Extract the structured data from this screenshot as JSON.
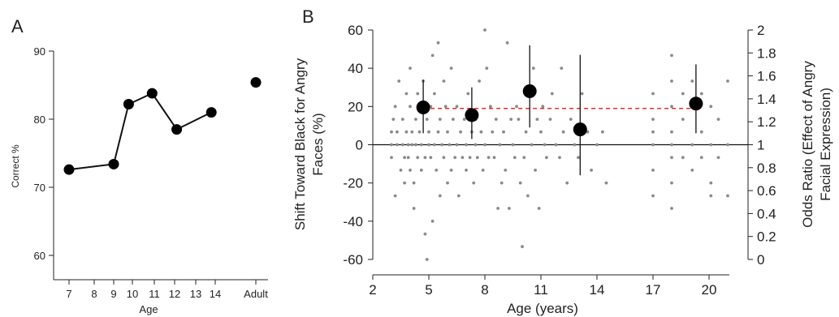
{
  "chart_data": [
    {
      "type": "line",
      "panel_label": "A",
      "xlabel": "Age",
      "ylabel": "Correct %",
      "ylim": [
        57,
        93
      ],
      "yticks": [
        60,
        70,
        80,
        90
      ],
      "x_categories": [
        "7",
        "8",
        "9",
        "10",
        "11",
        "12",
        "13",
        "14",
        "Adult"
      ],
      "points": [
        {
          "x": 7.0,
          "y": 72.6
        },
        {
          "x": 9.0,
          "y": 73.4
        },
        {
          "x": 9.8,
          "y": 82.2
        },
        {
          "x": 10.9,
          "y": 83.8
        },
        {
          "x": 12.1,
          "y": 78.5
        },
        {
          "x": 13.8,
          "y": 81.0
        }
      ],
      "adult_point": {
        "x": "Adult",
        "y": 85.4
      },
      "grid": false
    },
    {
      "type": "scatter",
      "panel_label": "B",
      "xlabel": "Age (years)",
      "ylabel": "Shift Toward Black for Angry Faces (%)",
      "ylabel_right": "Odds Ratio (Effect of Angry Facial Expression)",
      "xlim": [
        2,
        21.5
      ],
      "ylim": [
        -60,
        60
      ],
      "xticks": [
        2,
        5,
        8,
        11,
        14,
        17,
        20
      ],
      "yticks": [
        -60,
        -40,
        -20,
        0,
        20,
        40,
        60
      ],
      "yticks_right": [
        "0",
        "0.2",
        "0.4",
        "0.6",
        "0.8",
        "1",
        "1.2",
        "1.4",
        "1.6",
        "1.8",
        "2"
      ],
      "grid": false,
      "means": [
        {
          "x": 4.7,
          "y": 19.5,
          "low": 6,
          "high": 34
        },
        {
          "x": 7.3,
          "y": 15.5,
          "low": 3,
          "high": 30
        },
        {
          "x": 10.4,
          "y": 28,
          "low": 9,
          "high": 52
        },
        {
          "x": 13.1,
          "y": 8,
          "low": -16,
          "high": 47
        },
        {
          "x": 19.3,
          "y": 21.5,
          "low": 6,
          "high": 42
        }
      ],
      "reference_line": {
        "x": [
          4.7,
          19.3
        ],
        "y": [
          19,
          19
        ],
        "color": "#e03030"
      },
      "individual_points": [
        [
          3.0,
          6.7
        ],
        [
          3.0,
          0
        ],
        [
          3.0,
          -6.7
        ],
        [
          3.1,
          13.3
        ],
        [
          3.2,
          -26.7
        ],
        [
          3.2,
          20
        ],
        [
          3.3,
          0
        ],
        [
          3.3,
          6.7
        ],
        [
          3.4,
          33.3
        ],
        [
          3.5,
          -13.3
        ],
        [
          3.6,
          0
        ],
        [
          3.6,
          13.3
        ],
        [
          3.7,
          -6.7
        ],
        [
          3.7,
          -20
        ],
        [
          3.8,
          6.7
        ],
        [
          3.8,
          26.7
        ],
        [
          3.9,
          0
        ],
        [
          3.9,
          -6.7
        ],
        [
          4.0,
          40
        ],
        [
          4.0,
          20
        ],
        [
          4.0,
          -13.3
        ],
        [
          4.1,
          6.7
        ],
        [
          4.1,
          0
        ],
        [
          4.2,
          -20
        ],
        [
          4.2,
          -33.3
        ],
        [
          4.3,
          13.3
        ],
        [
          4.3,
          0
        ],
        [
          4.4,
          26.7
        ],
        [
          4.4,
          -6.7
        ],
        [
          4.5,
          6.7
        ],
        [
          4.5,
          20
        ],
        [
          4.6,
          0
        ],
        [
          4.6,
          -13.3
        ],
        [
          4.7,
          33.3
        ],
        [
          4.8,
          -6.7
        ],
        [
          4.8,
          -46.7
        ],
        [
          4.9,
          -60
        ],
        [
          4.9,
          13.3
        ],
        [
          5.0,
          0
        ],
        [
          5.0,
          6.7
        ],
        [
          5.1,
          -6.7
        ],
        [
          5.1,
          20
        ],
        [
          5.2,
          46.7
        ],
        [
          5.2,
          -40
        ],
        [
          5.3,
          0
        ],
        [
          5.3,
          26.7
        ],
        [
          5.4,
          -13.3
        ],
        [
          5.5,
          6.7
        ],
        [
          5.5,
          53.3
        ],
        [
          5.6,
          -26.7
        ],
        [
          5.6,
          13.3
        ],
        [
          5.7,
          0
        ],
        [
          5.8,
          -6.7
        ],
        [
          5.8,
          33.3
        ],
        [
          5.9,
          20
        ],
        [
          6.0,
          -20
        ],
        [
          6.0,
          6.7
        ],
        [
          6.1,
          0
        ],
        [
          6.2,
          -13.3
        ],
        [
          6.2,
          40
        ],
        [
          6.3,
          13.3
        ],
        [
          6.4,
          -6.7
        ],
        [
          6.5,
          0
        ],
        [
          6.5,
          20
        ],
        [
          6.6,
          -26.7
        ],
        [
          6.7,
          6.7
        ],
        [
          6.8,
          -6.7
        ],
        [
          6.9,
          13.3
        ],
        [
          7.0,
          0
        ],
        [
          7.0,
          -13.3
        ],
        [
          7.1,
          26.7
        ],
        [
          7.2,
          -6.7
        ],
        [
          7.3,
          6.7
        ],
        [
          7.4,
          -20
        ],
        [
          7.5,
          0
        ],
        [
          7.5,
          13.3
        ],
        [
          7.6,
          -6.7
        ],
        [
          7.7,
          33.3
        ],
        [
          7.8,
          6.7
        ],
        [
          7.9,
          -13.3
        ],
        [
          8.0,
          60
        ],
        [
          8.0,
          0
        ],
        [
          8.1,
          40
        ],
        [
          8.2,
          -6.7
        ],
        [
          8.3,
          20
        ],
        [
          8.4,
          6.7
        ],
        [
          8.5,
          -6.7
        ],
        [
          8.6,
          13.3
        ],
        [
          8.7,
          -33.3
        ],
        [
          8.8,
          0
        ],
        [
          8.9,
          -20
        ],
        [
          9.0,
          6.7
        ],
        [
          9.1,
          -13.3
        ],
        [
          9.2,
          53.3
        ],
        [
          9.3,
          -33.3
        ],
        [
          9.4,
          13.3
        ],
        [
          9.5,
          0
        ],
        [
          9.6,
          -6.7
        ],
        [
          9.7,
          20
        ],
        [
          9.8,
          13.3
        ],
        [
          9.9,
          -20
        ],
        [
          10.0,
          -53.3
        ],
        [
          10.1,
          -6.7
        ],
        [
          10.2,
          6.7
        ],
        [
          10.3,
          -26.7
        ],
        [
          10.5,
          0
        ],
        [
          10.6,
          40
        ],
        [
          10.7,
          -13.3
        ],
        [
          10.8,
          13.3
        ],
        [
          10.9,
          -33.3
        ],
        [
          11.0,
          6.7
        ],
        [
          11.1,
          20
        ],
        [
          11.2,
          0
        ],
        [
          11.3,
          -6.7
        ],
        [
          11.5,
          13.3
        ],
        [
          11.6,
          26.7
        ],
        [
          11.8,
          0
        ],
        [
          12.0,
          -6.7
        ],
        [
          12.1,
          40
        ],
        [
          12.2,
          6.7
        ],
        [
          12.4,
          -20
        ],
        [
          12.6,
          13.3
        ],
        [
          12.8,
          0
        ],
        [
          13.0,
          -6.7
        ],
        [
          13.2,
          26.7
        ],
        [
          13.5,
          6.7
        ],
        [
          13.7,
          -13.3
        ],
        [
          14.0,
          0
        ],
        [
          14.3,
          6.7
        ],
        [
          14.5,
          -20
        ],
        [
          17.0,
          26.7
        ],
        [
          17.0,
          13.3
        ],
        [
          17.0,
          6.7
        ],
        [
          17.0,
          0
        ],
        [
          17.0,
          -13.3
        ],
        [
          17.0,
          -26.7
        ],
        [
          18.0,
          46.7
        ],
        [
          18.0,
          33.3
        ],
        [
          18.0,
          20
        ],
        [
          18.0,
          6.7
        ],
        [
          18.0,
          0
        ],
        [
          18.0,
          -6.7
        ],
        [
          18.0,
          -20
        ],
        [
          18.0,
          -33.3
        ],
        [
          18.6,
          26.7
        ],
        [
          18.6,
          13.3
        ],
        [
          18.6,
          -6.7
        ],
        [
          19.1,
          33.3
        ],
        [
          19.1,
          20
        ],
        [
          19.1,
          0
        ],
        [
          19.1,
          -13.3
        ],
        [
          19.6,
          26.7
        ],
        [
          19.6,
          6.7
        ],
        [
          19.6,
          -6.7
        ],
        [
          20.1,
          20
        ],
        [
          20.1,
          0
        ],
        [
          20.1,
          -20
        ],
        [
          20.1,
          -26.7
        ],
        [
          20.5,
          13.3
        ],
        [
          20.5,
          -6.7
        ],
        [
          21.0,
          33.3
        ],
        [
          21.0,
          0
        ],
        [
          21.0,
          -26.7
        ]
      ]
    }
  ]
}
